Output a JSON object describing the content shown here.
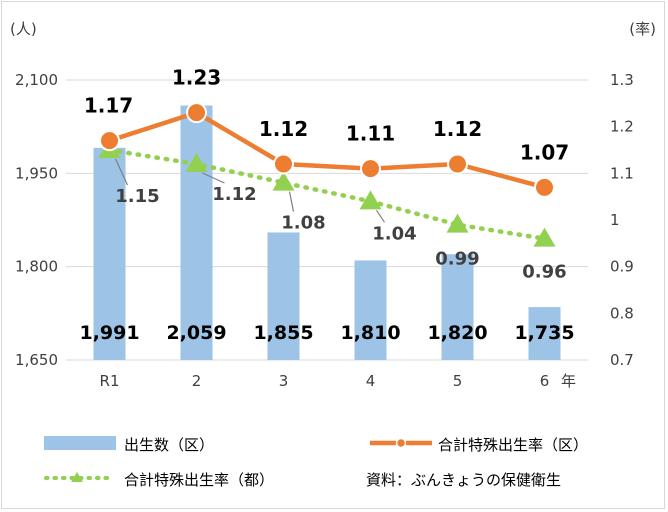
{
  "chart_data": {
    "type": "bar",
    "categories": [
      "R1",
      "2",
      "3",
      "4",
      "5",
      "6"
    ],
    "x_unit": "年",
    "left_unit": "(人)",
    "right_unit": "(率)",
    "left_ticks": [
      "2,100",
      "1,950",
      "1,800",
      "1,650"
    ],
    "right_ticks": [
      "1.3",
      "1.2",
      "1.1",
      "1",
      "0.9",
      "0.8",
      "0.7"
    ],
    "ylim_left": [
      1650,
      2100
    ],
    "ylim_right": [
      0.7,
      1.3
    ],
    "series": [
      {
        "name": "出生数（区）",
        "type": "bar",
        "axis": "left",
        "color": "#9dc3e6",
        "values": [
          1991,
          2059,
          1855,
          1810,
          1820,
          1735
        ],
        "labels": [
          "1,991",
          "2,059",
          "1,855",
          "1,810",
          "1,820",
          "1,735"
        ]
      },
      {
        "name": "合計特殊出生率（区）",
        "type": "line",
        "axis": "right",
        "color": "#ed7d31",
        "values": [
          1.17,
          1.23,
          1.12,
          1.11,
          1.12,
          1.07
        ],
        "labels": [
          "1.17",
          "1.23",
          "1.12",
          "1.11",
          "1.12",
          "1.07"
        ]
      },
      {
        "name": "合計特殊出生率（都）",
        "type": "line-dotted",
        "axis": "right",
        "color": "#70ad47",
        "marker_color": "#92d050",
        "values": [
          1.15,
          1.12,
          1.08,
          1.04,
          0.99,
          0.96
        ],
        "labels": [
          "1.15",
          "1.12",
          "1.08",
          "1.04",
          "0.99",
          "0.96"
        ]
      }
    ],
    "source_note": "資料：ぶんきょうの保健衛生",
    "grid": true,
    "legend": "bottom"
  }
}
